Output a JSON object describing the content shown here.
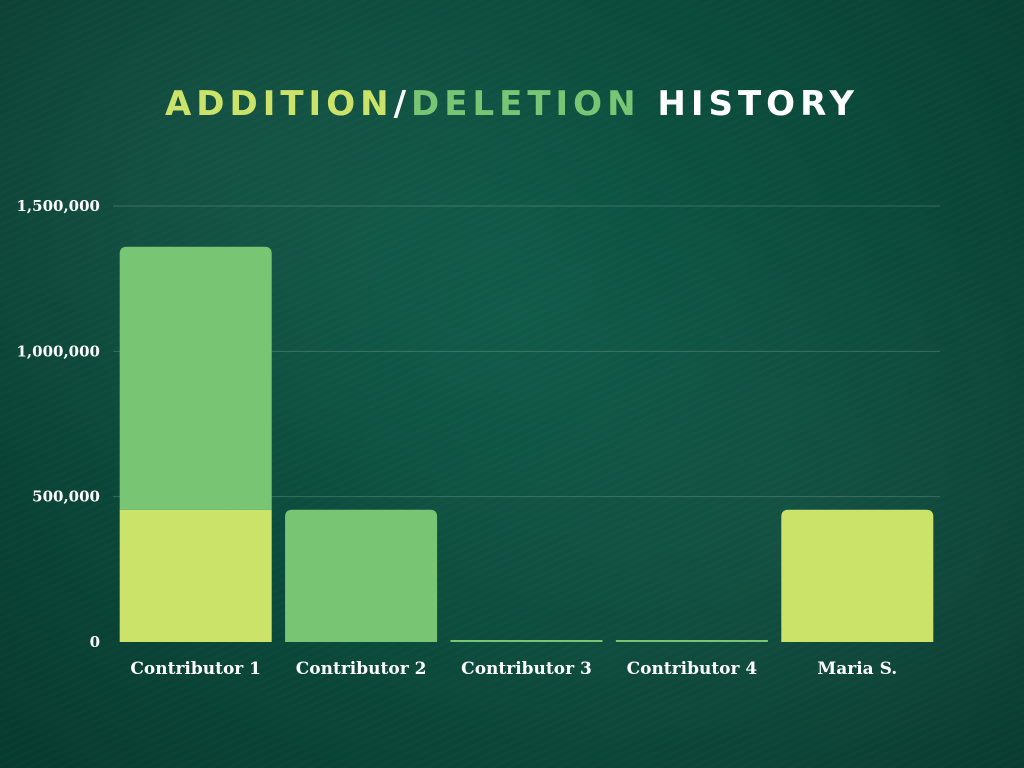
{
  "title": {
    "part1": "ADDITION",
    "separator": "/",
    "part2": "DELETION",
    "part3": "HISTORY"
  },
  "colors": {
    "addition": "#cce36a",
    "deletion": "#78c674",
    "title_rest": "#ffffff",
    "gridline": "rgba(255,255,255,0.18)",
    "axis_text": "#ffffff"
  },
  "chart_data": {
    "type": "bar",
    "stacked": true,
    "title": "ADDITION/DELETION HISTORY",
    "categories": [
      "Contributor 1",
      "Contributor 2",
      "Contributor 3",
      "Contributor 4",
      "Maria S."
    ],
    "series": [
      {
        "color_key": "addition",
        "values": [
          455000,
          0,
          0,
          0,
          455000
        ]
      },
      {
        "color_key": "deletion",
        "values": [
          905000,
          455000,
          1500,
          1500,
          0
        ]
      }
    ],
    "ylim": [
      0,
      1500000
    ],
    "yticks": [
      0,
      500000,
      1000000,
      1500000
    ],
    "ytick_labels": [
      "0",
      "500,000",
      "1,000,000",
      "1,500,000"
    ],
    "grid": true,
    "legend": "none"
  }
}
